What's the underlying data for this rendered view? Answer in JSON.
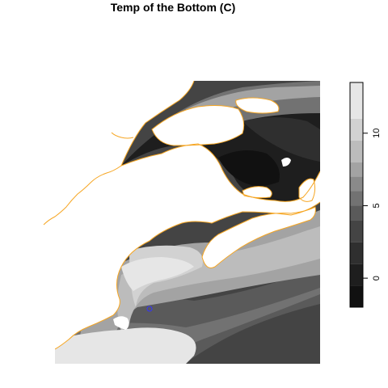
{
  "map": {
    "title": "Temp of the Bottom (C)",
    "colors": {
      "land": "#ffffff",
      "coastline": "#f6a623",
      "marker": "#3333ff",
      "background": "#ffffff"
    },
    "marker": {
      "shape": "open-circle"
    },
    "legend": {
      "range": [
        -2,
        13.5
      ],
      "ticks": [
        {
          "value": 0,
          "label": "0"
        },
        {
          "value": 5,
          "label": "5"
        },
        {
          "value": 10,
          "label": "10"
        }
      ],
      "bands": [
        {
          "from": -2,
          "to": -0.5,
          "color": "#111111"
        },
        {
          "from": -0.5,
          "to": 1,
          "color": "#1e1e1e"
        },
        {
          "from": 1,
          "to": 2.5,
          "color": "#2f2f2f"
        },
        {
          "from": 2.5,
          "to": 4,
          "color": "#444444"
        },
        {
          "from": 4,
          "to": 5,
          "color": "#5a5a5a"
        },
        {
          "from": 5,
          "to": 6,
          "color": "#727272"
        },
        {
          "from": 6,
          "to": 7,
          "color": "#8a8a8a"
        },
        {
          "from": 7,
          "to": 8,
          "color": "#a3a3a3"
        },
        {
          "from": 8,
          "to": 9.5,
          "color": "#bcbcbc"
        },
        {
          "from": 9.5,
          "to": 11,
          "color": "#d2d2d2"
        },
        {
          "from": 11,
          "to": 13.5,
          "color": "#e6e6e6"
        }
      ]
    }
  }
}
